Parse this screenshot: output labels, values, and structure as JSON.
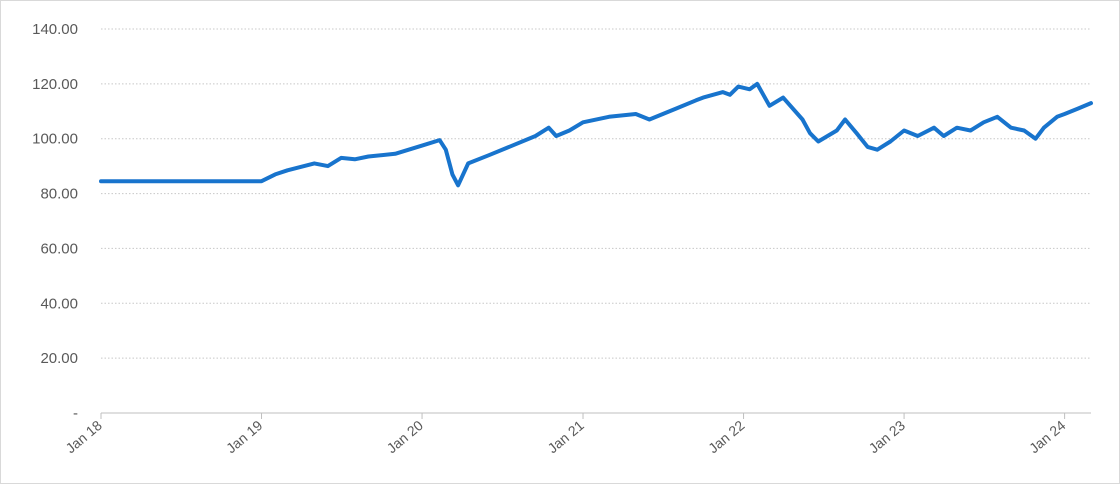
{
  "chart_data": {
    "type": "line",
    "title": "",
    "xlabel": "",
    "ylabel": "",
    "ylim": [
      0,
      140
    ],
    "xlim": [
      "2018-01-01",
      "2024-03-01"
    ],
    "y_ticks": [
      {
        "value": 0,
        "label": "-"
      },
      {
        "value": 20,
        "label": "20.00"
      },
      {
        "value": 40,
        "label": "40.00"
      },
      {
        "value": 60,
        "label": "60.00"
      },
      {
        "value": 80,
        "label": "80.00"
      },
      {
        "value": 100,
        "label": "100.00"
      },
      {
        "value": 120,
        "label": "120.00"
      },
      {
        "value": 140,
        "label": "140.00"
      }
    ],
    "x_ticks": [
      {
        "date": "2018-01-01",
        "label": "Jan 18"
      },
      {
        "date": "2019-01-01",
        "label": "Jan 19"
      },
      {
        "date": "2020-01-01",
        "label": "Jan 20"
      },
      {
        "date": "2021-01-01",
        "label": "Jan 21"
      },
      {
        "date": "2022-01-01",
        "label": "Jan 22"
      },
      {
        "date": "2023-01-01",
        "label": "Jan 23"
      },
      {
        "date": "2024-01-01",
        "label": "Jan 24"
      }
    ],
    "grid": "horizontal dotted",
    "legend": "none",
    "line_color": "#1874CD",
    "series": [
      {
        "x": [
          "2018-01-01",
          "2018-04-01",
          "2018-07-01",
          "2018-10-01",
          "2019-01-01",
          "2019-02-01",
          "2019-03-01",
          "2019-05-01",
          "2019-06-01",
          "2019-07-01",
          "2019-08-01",
          "2019-09-01",
          "2019-11-01",
          "2020-01-01",
          "2020-02-10",
          "2020-02-24",
          "2020-03-10",
          "2020-03-23",
          "2020-04-15",
          "2020-06-01",
          "2020-08-01",
          "2020-09-15",
          "2020-10-15",
          "2020-11-01",
          "2020-12-01",
          "2021-01-01",
          "2021-03-01",
          "2021-05-01",
          "2021-06-01",
          "2021-08-01",
          "2021-09-15",
          "2021-10-01",
          "2021-11-15",
          "2021-12-01",
          "2021-12-20",
          "2022-01-15",
          "2022-02-01",
          "2022-03-01",
          "2022-04-01",
          "2022-05-15",
          "2022-06-01",
          "2022-06-20",
          "2022-08-01",
          "2022-08-20",
          "2022-09-15",
          "2022-10-10",
          "2022-11-01",
          "2022-12-01",
          "2023-01-01",
          "2023-02-01",
          "2023-03-10",
          "2023-04-01",
          "2023-05-01",
          "2023-06-01",
          "2023-07-01",
          "2023-08-01",
          "2023-09-01",
          "2023-10-01",
          "2023-10-27",
          "2023-11-15",
          "2023-12-15",
          "2024-01-01",
          "2024-02-01",
          "2024-03-01"
        ],
        "y": [
          84.5,
          84.5,
          84.5,
          84.5,
          84.5,
          87,
          88.5,
          91,
          90,
          93,
          92.5,
          93.5,
          94.5,
          97.5,
          99.5,
          96,
          87,
          83,
          91,
          94,
          98,
          101,
          104,
          101,
          103,
          106,
          108,
          109,
          107,
          111,
          114,
          115,
          117,
          116,
          119,
          118,
          120,
          112,
          115,
          107,
          102,
          99,
          103,
          107,
          102,
          97,
          96,
          99,
          103,
          101,
          104,
          101,
          104,
          103,
          106,
          108,
          104,
          103,
          100,
          104,
          108,
          109,
          111,
          113
        ]
      }
    ]
  }
}
